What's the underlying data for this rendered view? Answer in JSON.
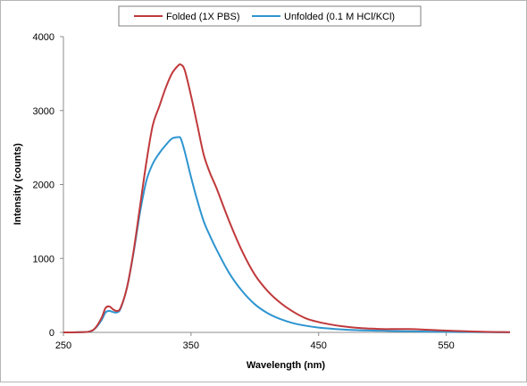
{
  "chart_data": {
    "type": "line",
    "title": "",
    "xlabel": "Wavelength (nm)",
    "ylabel": "Intensity (counts)",
    "xlim": [
      250,
      600
    ],
    "ylim": [
      0,
      4000
    ],
    "xticks": [
      250,
      350,
      450,
      550
    ],
    "yticks": [
      0,
      1000,
      2000,
      3000,
      4000
    ],
    "xtick_labels": [
      "250",
      "350",
      "450",
      "550"
    ],
    "ytick_labels": [
      "0",
      "1000",
      "2000",
      "3000",
      "4000"
    ],
    "grid": false,
    "legend_position": "top",
    "series": [
      {
        "name": "Folded (1X PBS)",
        "color": "#c0393b",
        "x": [
          250,
          260,
          270,
          275,
          280,
          283,
          286,
          289,
          292,
          295,
          300,
          305,
          310,
          315,
          320,
          325,
          330,
          335,
          340,
          342,
          345,
          350,
          355,
          360,
          365,
          370,
          380,
          390,
          400,
          410,
          420,
          430,
          440,
          450,
          460,
          470,
          480,
          490,
          500,
          510,
          520,
          530,
          540,
          550,
          560,
          570,
          580,
          590,
          600
        ],
        "y": [
          0,
          2,
          10,
          60,
          200,
          330,
          350,
          310,
          290,
          340,
          620,
          1100,
          1700,
          2300,
          2800,
          3050,
          3300,
          3500,
          3610,
          3620,
          3550,
          3200,
          2800,
          2400,
          2150,
          1950,
          1500,
          1100,
          780,
          560,
          400,
          280,
          190,
          140,
          105,
          80,
          62,
          52,
          45,
          45,
          45,
          40,
          32,
          24,
          18,
          12,
          8,
          5,
          3
        ]
      },
      {
        "name": "Unfolded (0.1 M HCl/KCl)",
        "color": "#2e95d0",
        "x": [
          250,
          260,
          270,
          275,
          280,
          283,
          286,
          289,
          292,
          295,
          300,
          305,
          310,
          315,
          320,
          325,
          330,
          335,
          340,
          342,
          345,
          350,
          355,
          360,
          365,
          370,
          380,
          390,
          400,
          410,
          420,
          430,
          440,
          450,
          460,
          470,
          480,
          490,
          500,
          510,
          520,
          530,
          540,
          550,
          560,
          570,
          580,
          590,
          600
        ],
        "y": [
          0,
          2,
          10,
          55,
          170,
          270,
          290,
          275,
          270,
          330,
          620,
          1080,
          1620,
          2050,
          2280,
          2420,
          2530,
          2620,
          2640,
          2620,
          2450,
          2100,
          1780,
          1500,
          1300,
          1120,
          800,
          560,
          380,
          260,
          180,
          125,
          90,
          65,
          50,
          38,
          30,
          25,
          22,
          18,
          15,
          12,
          9,
          7,
          5,
          4,
          3,
          2,
          2
        ]
      }
    ]
  }
}
